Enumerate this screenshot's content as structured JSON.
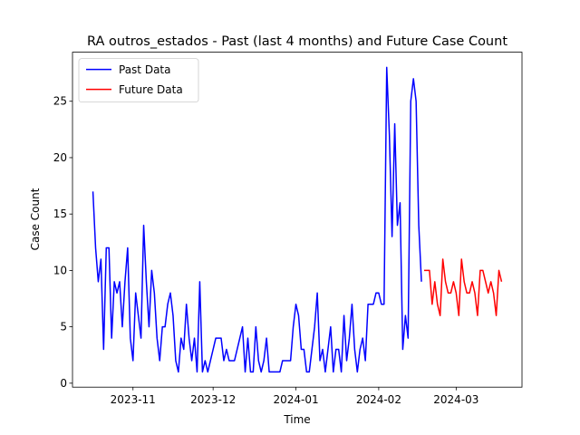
{
  "chart_data": {
    "type": "line",
    "title": "RA outros_estados - Past (last 4 months) and Future Case Count",
    "x_label": "Time",
    "y_label": "Case Count",
    "legend": "upper left",
    "xlim": [
      19639.35,
      19807.65
    ],
    "xticks": [
      {
        "value": 19662,
        "label": "2023-11"
      },
      {
        "value": 19692,
        "label": "2023-12"
      },
      {
        "value": 19723,
        "label": "2024-01"
      },
      {
        "value": 19754,
        "label": "2024-02"
      },
      {
        "value": 19783,
        "label": "2024-03"
      }
    ],
    "ylim": [
      -0.35,
      29.35
    ],
    "yticks": [
      0,
      5,
      10,
      15,
      20,
      25
    ],
    "series": [
      {
        "name": "Past Data",
        "color": "#0000ff",
        "x": [
          19647,
          19648,
          19649,
          19650,
          19651,
          19652,
          19653,
          19654,
          19655,
          19656,
          19657,
          19658,
          19659,
          19660,
          19661,
          19662,
          19663,
          19664,
          19665,
          19666,
          19667,
          19668,
          19669,
          19670,
          19671,
          19672,
          19673,
          19674,
          19675,
          19676,
          19677,
          19678,
          19679,
          19680,
          19681,
          19682,
          19683,
          19684,
          19685,
          19686,
          19687,
          19688,
          19689,
          19690,
          19691,
          19692,
          19693,
          19694,
          19695,
          19696,
          19697,
          19698,
          19699,
          19700,
          19701,
          19702,
          19703,
          19704,
          19705,
          19706,
          19707,
          19708,
          19709,
          19710,
          19711,
          19712,
          19713,
          19714,
          19715,
          19716,
          19717,
          19718,
          19719,
          19720,
          19721,
          19722,
          19723,
          19724,
          19725,
          19726,
          19727,
          19728,
          19729,
          19730,
          19731,
          19732,
          19733,
          19734,
          19735,
          19736,
          19737,
          19738,
          19739,
          19740,
          19741,
          19742,
          19743,
          19744,
          19745,
          19746,
          19747,
          19748,
          19749,
          19750,
          19751,
          19752,
          19753,
          19754,
          19755,
          19756,
          19757,
          19758,
          19759,
          19760,
          19761,
          19762,
          19763,
          19764,
          19765,
          19766,
          19767,
          19768,
          19769,
          19770
        ],
        "values": [
          17,
          12,
          9,
          11,
          3,
          12,
          12,
          4,
          9,
          8,
          9,
          5,
          9,
          12,
          4,
          2,
          8,
          6,
          4,
          14,
          9,
          5,
          10,
          8,
          4,
          2,
          5,
          5,
          7,
          8,
          6,
          2,
          1,
          4,
          3,
          7,
          4,
          2,
          4,
          1,
          9,
          1,
          2,
          1,
          2,
          3,
          4,
          4,
          4,
          2,
          3,
          2,
          2,
          2,
          3,
          4,
          5,
          1,
          4,
          1,
          1,
          5,
          2,
          1,
          2,
          4,
          1,
          1,
          1,
          1,
          1,
          2,
          2,
          2,
          2,
          5,
          7,
          6,
          3,
          3,
          1,
          1,
          3,
          5,
          8,
          2,
          3,
          1,
          3,
          5,
          1,
          3,
          3,
          1,
          6,
          2,
          4,
          7,
          3,
          1,
          3,
          4,
          2,
          7,
          7,
          7,
          8,
          8,
          7,
          7,
          28,
          22,
          13,
          23,
          14,
          16,
          3,
          6,
          4,
          25,
          27,
          25,
          14,
          9
        ]
      },
      {
        "name": "Future Data",
        "color": "#ff0000",
        "x": [
          19771,
          19772,
          19773,
          19774,
          19775,
          19776,
          19777,
          19778,
          19779,
          19780,
          19781,
          19782,
          19783,
          19784,
          19785,
          19786,
          19787,
          19788,
          19789,
          19790,
          19791,
          19792,
          19793,
          19794,
          19795,
          19796,
          19797,
          19798,
          19799,
          19800
        ],
        "values": [
          10,
          10,
          10,
          7,
          9,
          7,
          6,
          11,
          9,
          8,
          8,
          9,
          8,
          6,
          11,
          9,
          8,
          8,
          9,
          8,
          6,
          10,
          10,
          9,
          8,
          9,
          8,
          6,
          10,
          9
        ]
      }
    ]
  }
}
